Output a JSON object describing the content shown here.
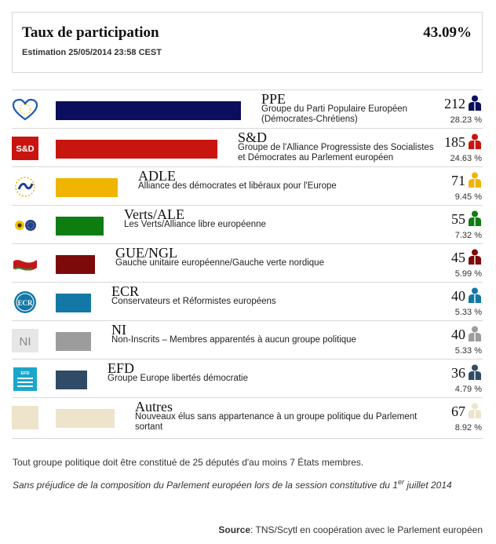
{
  "turnout": {
    "title": "Taux de participation",
    "value": "43.09%",
    "estimate": "Estimation 25/05/2014 23:58 CEST"
  },
  "chart_data": {
    "type": "bar",
    "xlim": [
      0,
      212
    ],
    "categories": [
      "PPE",
      "S&D",
      "ADLE",
      "Verts/ALE",
      "GUE/NGL",
      "ECR",
      "NI",
      "EFD",
      "Autres"
    ],
    "groups": [
      {
        "abbr": "PPE",
        "desc": "Groupe du Parti Populaire Européen (Démocrates-Chrétiens)",
        "seats": 212,
        "seats_label": "212",
        "pct": "28.23 %",
        "color": "#0a0e5c",
        "icon": "ppe-heart-icon"
      },
      {
        "abbr": "S&D",
        "desc": "Groupe de l'Alliance Progressiste des Socialistes et Démocrates au Parlement européen",
        "seats": 185,
        "seats_label": "185",
        "pct": "24.63 %",
        "color": "#c8150f",
        "icon": "sd-logo-icon",
        "logo_text": "S&D"
      },
      {
        "abbr": "ADLE",
        "desc": "Alliance des démocrates et libéraux pour l'Europe",
        "seats": 71,
        "seats_label": "71",
        "pct": "9.45 %",
        "color": "#f0b400",
        "icon": "adle-logo-icon"
      },
      {
        "abbr": "Verts/ALE",
        "desc": "Les Verts/Alliance libre européenne",
        "seats": 55,
        "seats_label": "55",
        "pct": "7.32 %",
        "color": "#0d7d12",
        "icon": "verts-sunflower-icon"
      },
      {
        "abbr": "GUE/NGL",
        "desc": "Gauche unitaire européenne/Gauche verte nordique",
        "seats": 45,
        "seats_label": "45",
        "pct": "5.99 %",
        "color": "#7c0a0a",
        "icon": "gue-flag-icon"
      },
      {
        "abbr": "ECR",
        "desc": "Conservateurs et Réformistes européens",
        "seats": 40,
        "seats_label": "40",
        "pct": "5.33 %",
        "color": "#1478a6",
        "icon": "ecr-logo-icon",
        "logo_text": "ECR"
      },
      {
        "abbr": "NI",
        "desc": "Non-Inscrits – Membres apparentés à aucun groupe politique",
        "seats": 40,
        "seats_label": "40",
        "pct": "5.33 %",
        "color": "#9c9c9c",
        "icon": "ni-logo-icon",
        "logo_text": "NI"
      },
      {
        "abbr": "EFD",
        "desc": "Groupe Europe libertés démocratie",
        "seats": 36,
        "seats_label": "36",
        "pct": "4.79 %",
        "color": "#2f4b66",
        "icon": "efd-logo-icon",
        "logo_text": "EFD"
      },
      {
        "abbr": "Autres",
        "desc": "Nouveaux élus sans appartenance à un groupe politique du Parlement sortant",
        "seats": 67,
        "seats_label": "67",
        "pct": "8.92 %",
        "color": "#ede4cb",
        "icon": "autres-swatch-icon"
      }
    ]
  },
  "notes": {
    "rule": "Tout groupe politique doit être constitué de 25 députés d'au moins 7 États membres.",
    "disclaimer_before": "Sans préjudice de la composition du Parlement européen lors de la session constitutive du 1",
    "disclaimer_sup": "er",
    "disclaimer_after": " juillet 2014",
    "source_label": "Source",
    "source_text": ": TNS/Scytl en coopération avec le Parlement européen"
  }
}
